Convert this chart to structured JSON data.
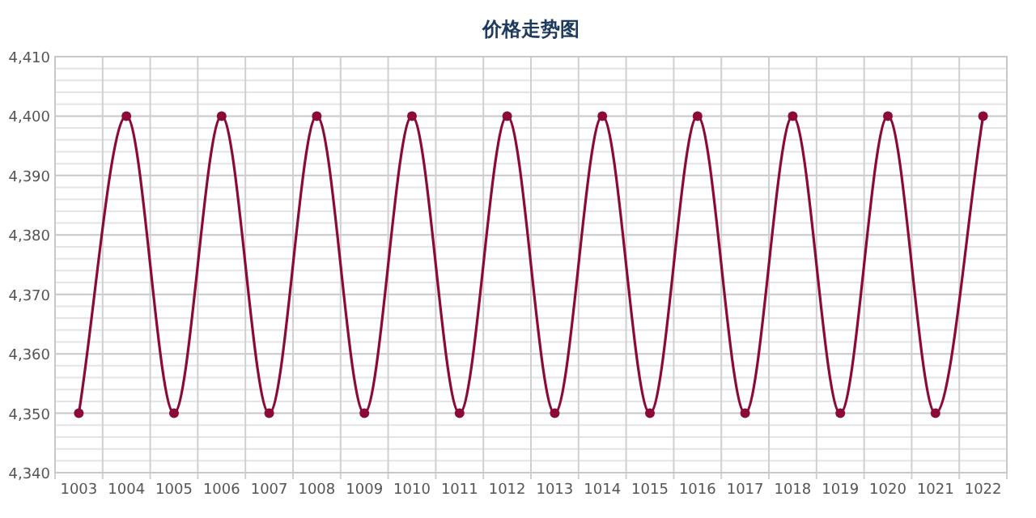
{
  "chart_data": {
    "type": "line",
    "title": "价格走势图",
    "categories": [
      "1003",
      "1004",
      "1005",
      "1006",
      "1007",
      "1008",
      "1009",
      "1010",
      "1011",
      "1012",
      "1013",
      "1014",
      "1015",
      "1016",
      "1017",
      "1018",
      "1019",
      "1020",
      "1021",
      "1022"
    ],
    "series": [
      {
        "color": "#8b0a3a",
        "values": [
          4350,
          4400,
          4350,
          4400,
          4350,
          4400,
          4350,
          4400,
          4350,
          4400,
          4350,
          4400,
          4350,
          4400,
          4350,
          4400,
          4350,
          4400,
          4350,
          4400
        ]
      }
    ],
    "ylim": [
      4340,
      4410
    ],
    "yticks": [
      {
        "value": 4340,
        "label": "4,340"
      },
      {
        "value": 4350,
        "label": "4,350"
      },
      {
        "value": 4360,
        "label": "4,360"
      },
      {
        "value": 4370,
        "label": "4,370"
      },
      {
        "value": 4380,
        "label": "4,380"
      },
      {
        "value": 4390,
        "label": "4,390"
      },
      {
        "value": 4400,
        "label": "4,400"
      },
      {
        "value": 4410,
        "label": "4,410"
      }
    ],
    "grid": true,
    "marker": "circle",
    "line_style": "solid"
  }
}
